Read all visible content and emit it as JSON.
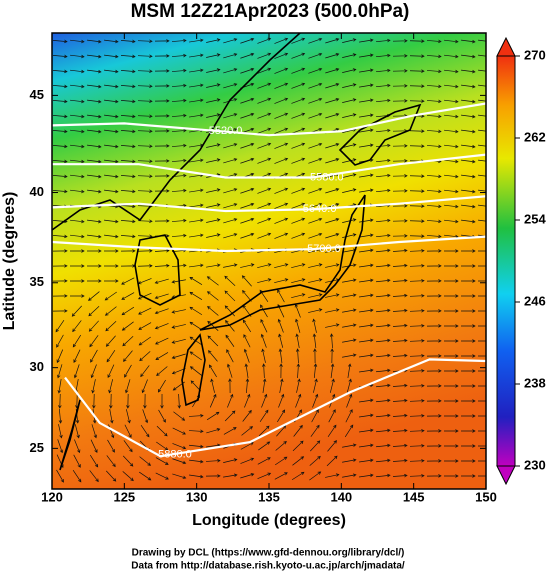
{
  "chart_data": {
    "type": "contour",
    "title": "MSM 12Z21Apr2023 (500.0hPa)",
    "x_label": "Longitude (degrees)",
    "y_label": "Latitude  (degrees)",
    "projection": "mercator",
    "xlim": [
      120,
      150
    ],
    "ylim": [
      22.4,
      48
    ],
    "xticks": [
      120,
      125,
      130,
      135,
      140,
      145,
      150
    ],
    "yticks": [
      25,
      30,
      35,
      40,
      45
    ],
    "colorbar": {
      "lim": [
        230,
        270
      ],
      "ticks": [
        230,
        238,
        246,
        254,
        262,
        270
      ]
    },
    "contours": [
      {
        "label": "5520.0",
        "label_lon": 132,
        "label_lat": 43.2,
        "lon": [
          120,
          125,
          130,
          135,
          140,
          145,
          150
        ],
        "lat": [
          43.5,
          43.6,
          43.3,
          43.0,
          43.2,
          44.0,
          44.6
        ]
      },
      {
        "label": "5580.0",
        "label_lon": 139,
        "label_lat": 40.8,
        "lon": [
          120,
          126,
          132,
          138,
          144,
          150
        ],
        "lat": [
          41.5,
          41.5,
          40.8,
          40.8,
          41.5,
          42.0
        ]
      },
      {
        "label": "5640.0",
        "label_lon": 138.5,
        "label_lat": 39.1,
        "lon": [
          120,
          126,
          132,
          138,
          144,
          150
        ],
        "lat": [
          39.2,
          39.4,
          39.0,
          39.1,
          39.4,
          39.8
        ]
      },
      {
        "label": "5700.0",
        "label_lon": 138.8,
        "label_lat": 36.9,
        "lon": [
          120,
          126,
          132,
          138,
          144,
          150
        ],
        "lat": [
          37.3,
          37.0,
          36.8,
          36.9,
          37.3,
          37.6
        ]
      },
      {
        "label": "5880.0",
        "label_lon": 128.5,
        "label_lat": 24.6,
        "lon": [
          120.9,
          123.3,
          127.5,
          133.7,
          140.6,
          146.1,
          150
        ],
        "lat": [
          29.4,
          26.6,
          24.5,
          25.4,
          28.5,
          30.5,
          30.4
        ]
      }
    ],
    "footer": [
      "Drawing by DCL (https://www.gfd-dennou.org/library/dcl/)",
      "Data from http://database.rish.kyoto-u.ac.jp/arch/jmadata/"
    ]
  }
}
